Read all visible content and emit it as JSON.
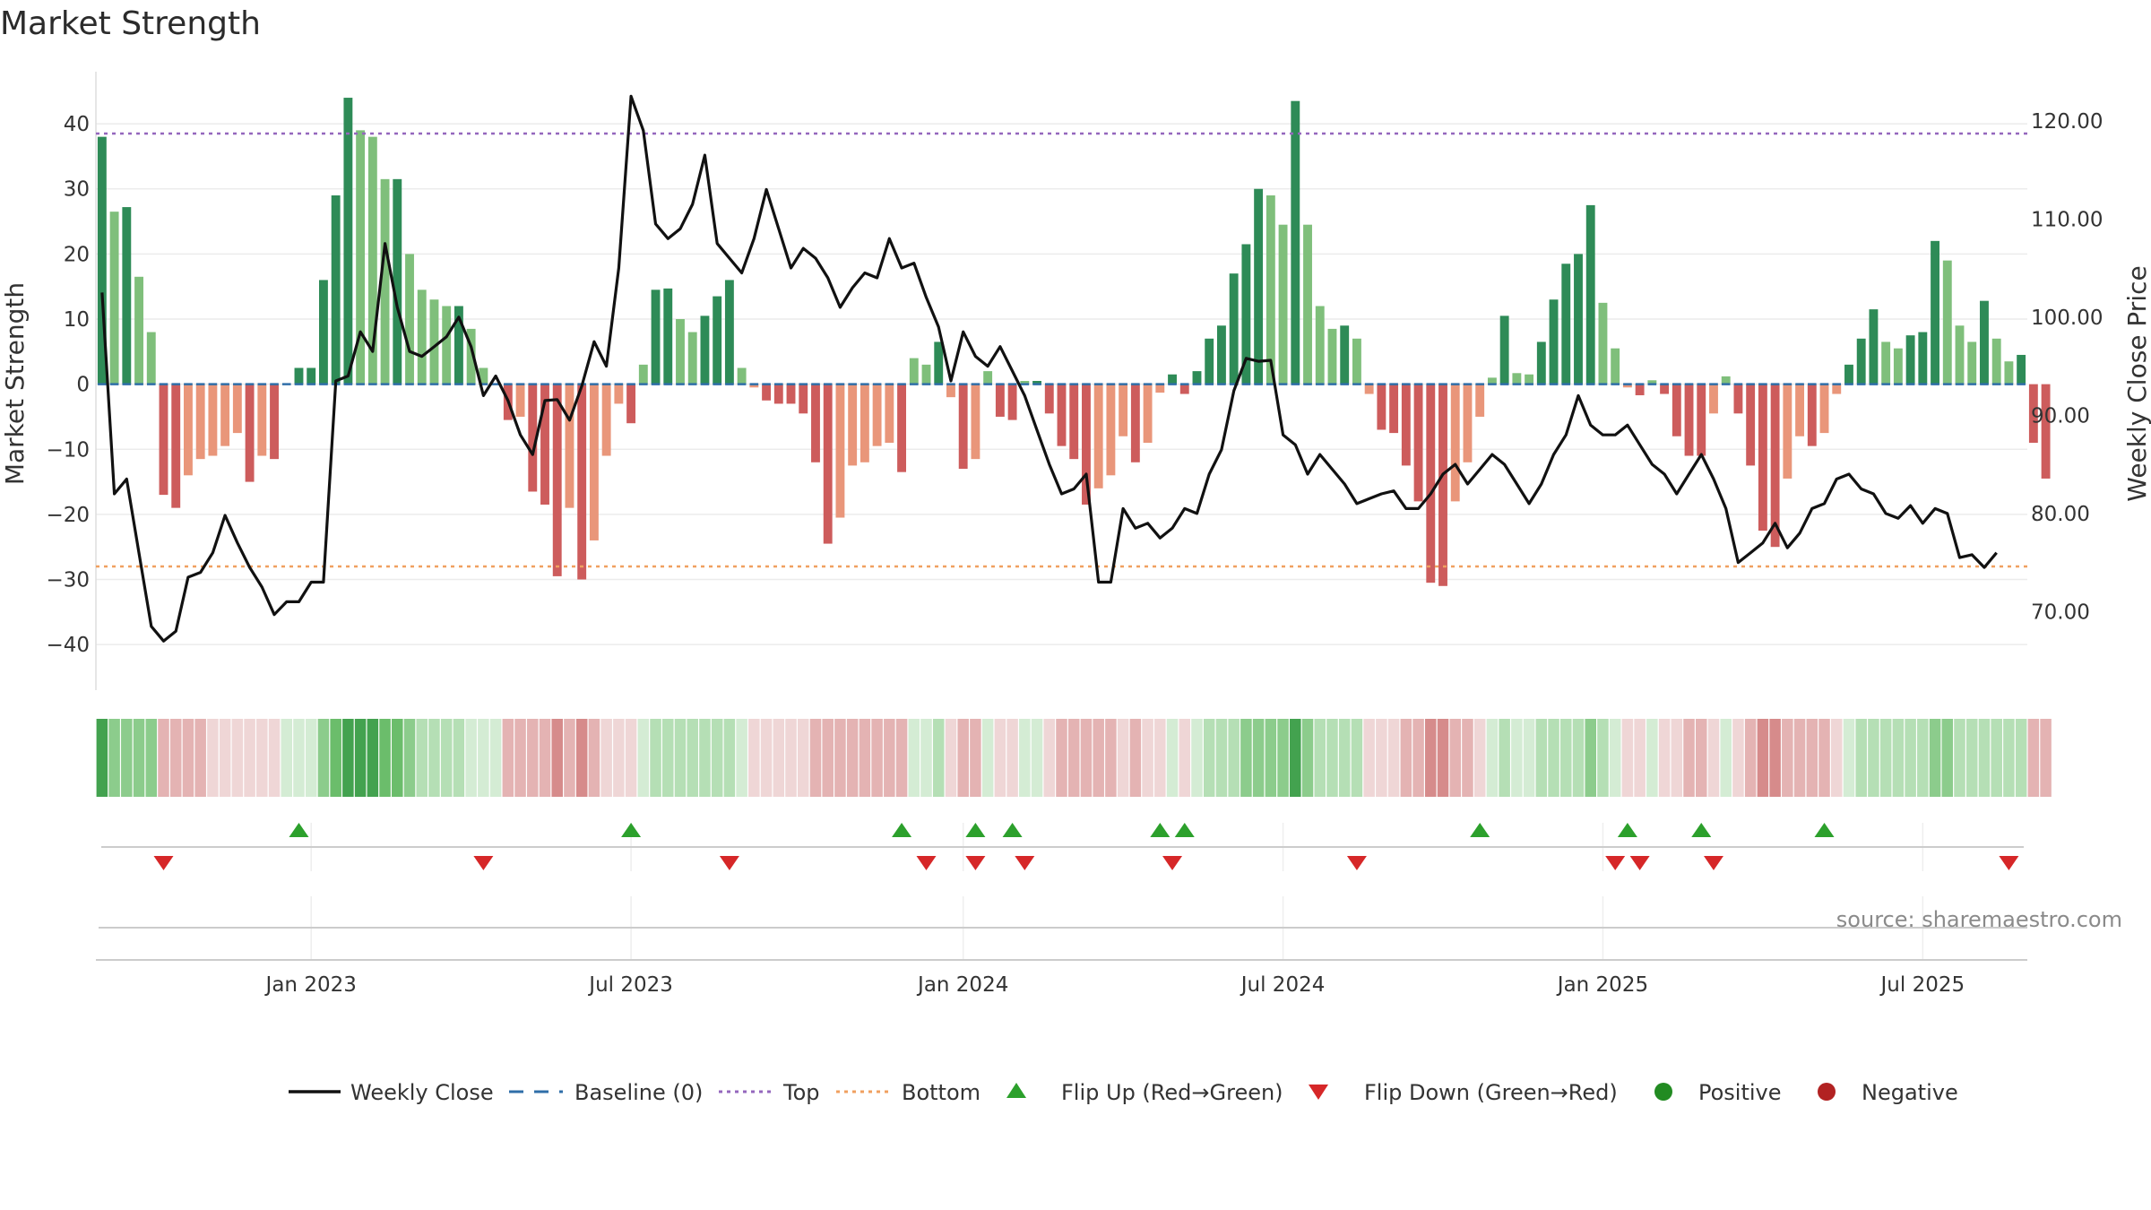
{
  "chart_data": {
    "type": "bar",
    "title": "Market Strength",
    "ylabel_left": "Market Strength",
    "ylabel_right": "Weekly Close Price",
    "ylim_left": [
      -47,
      48
    ],
    "ylim_right": [
      62,
      125
    ],
    "yticks_left": [
      40,
      30,
      20,
      10,
      0,
      -10,
      -20,
      -30,
      -40
    ],
    "ytick_labels_left": [
      "40",
      "30",
      "20",
      "10",
      "0",
      "−10",
      "−20",
      "−30",
      "−40"
    ],
    "yticks_right": [
      120,
      110,
      100,
      90,
      80,
      70
    ],
    "ytick_labels_right": [
      "120.00",
      "110.00",
      "100.00",
      "90.00",
      "80.00",
      "70.00"
    ],
    "top_line": 38.5,
    "bottom_line": -28,
    "xticks": [
      {
        "label": "Jan 2023",
        "week": 17
      },
      {
        "label": "Jul 2023",
        "week": 43
      },
      {
        "label": "Jan 2024",
        "week": 70
      },
      {
        "label": "Jul 2024",
        "week": 96
      },
      {
        "label": "Jan 2025",
        "week": 122
      },
      {
        "label": "Jul 2025",
        "week": 148
      }
    ],
    "weeks": 157,
    "strength": [
      38,
      26.5,
      27.2,
      16.5,
      8,
      -17,
      -19,
      -14,
      -11.5,
      -11,
      -9.5,
      -7.5,
      -15,
      -11,
      -11.5,
      0,
      2.5,
      2.5,
      16,
      29,
      44,
      39,
      38,
      31.5,
      31.5,
      20,
      14.5,
      13,
      12,
      12,
      8.5,
      2.5,
      0,
      -5.5,
      -5,
      -16.5,
      -18.5,
      -29.5,
      -19,
      -30,
      -24,
      -11,
      -3,
      -6,
      3,
      14.5,
      14.7,
      10,
      8,
      10.5,
      13.5,
      16,
      2.5,
      -0.5,
      -2.5,
      -3,
      -3,
      -4.5,
      -12,
      -24.5,
      -20.5,
      -12.5,
      -12,
      -9.5,
      -9,
      -13.5,
      4,
      3,
      6.5,
      -2,
      -13,
      -11.5,
      2,
      -5,
      -5.5,
      0.5,
      0.5,
      -4.5,
      -9.5,
      -11.5,
      -18.5,
      -16,
      -14,
      -8,
      -12,
      -9,
      -1.3,
      1.5,
      -1.5,
      2,
      7,
      9,
      17,
      21.5,
      30,
      29,
      24.5,
      43.5,
      24.5,
      12,
      8.5,
      9,
      7,
      -1.5,
      -7,
      -7.5,
      -12.5,
      -18,
      -30.5,
      -31,
      -18,
      -12,
      -5,
      1,
      10.5,
      1.7,
      1.5,
      6.5,
      13,
      18.5,
      20,
      27.5,
      12.5,
      5.5,
      -0.5,
      -1.7,
      0.6,
      -1.5,
      -8,
      -11,
      -11,
      -4.5,
      1.2,
      -4.5,
      -12.5,
      -22.5,
      -25,
      -14.5,
      -8,
      -9.5,
      -7.5,
      -1.5,
      3,
      7,
      11.5,
      6.5,
      5.5,
      7.5,
      8,
      22,
      19,
      9,
      6.5,
      12.8,
      7,
      3.5,
      4.5,
      -9,
      -14.5
    ],
    "weekly_close": [
      102.5,
      82,
      83.5,
      76,
      68.5,
      67,
      68,
      73.5,
      74,
      76,
      79.8,
      77,
      74.5,
      72.5,
      69.7,
      71,
      71,
      73,
      73,
      93.5,
      94,
      98.5,
      96.5,
      107.5,
      101,
      96.5,
      96,
      97,
      98,
      100,
      97,
      92,
      94,
      91.5,
      88,
      86,
      91.5,
      91.6,
      89.5,
      93,
      97.5,
      95,
      105,
      122.5,
      119,
      109.5,
      108,
      109,
      111.5,
      116.5,
      107.5,
      106,
      104.5,
      108,
      113,
      109,
      105,
      107,
      106,
      104,
      101,
      103,
      104.5,
      104,
      108,
      105,
      105.5,
      102,
      99,
      93.5,
      98.5,
      96,
      95,
      97,
      94.5,
      92,
      88.5,
      85,
      82,
      82.5,
      84,
      73,
      73,
      80.5,
      78.5,
      79,
      77.5,
      78.5,
      80.5,
      80,
      84,
      86.5,
      92.5,
      95.8,
      95.5,
      95.6,
      88,
      87,
      84,
      86,
      84.5,
      83,
      81,
      81.5,
      82,
      82.3,
      80.5,
      80.5,
      82,
      84,
      85,
      83,
      84.5,
      86,
      85,
      83,
      81,
      83,
      86,
      88,
      92,
      89,
      88,
      88,
      89,
      87,
      85,
      84,
      82,
      84,
      86,
      83.5,
      80.5,
      75,
      76,
      77,
      79,
      76.5,
      78,
      80.5,
      81,
      83.5,
      84,
      82.5,
      82,
      80,
      79.5,
      80.8,
      79,
      80.5,
      80,
      75.5,
      75.8,
      74.5,
      76
    ]
  },
  "strip_shades": [
    5,
    3,
    3,
    3,
    3,
    -2,
    -2,
    -2,
    -2,
    -1,
    -1,
    -1,
    -1,
    -1,
    -1,
    1,
    1,
    1,
    3,
    4,
    5,
    5,
    5,
    4,
    4,
    3,
    2,
    2,
    2,
    2,
    1,
    1,
    1,
    -2,
    -2,
    -2,
    -2,
    -3,
    -2,
    -3,
    -2,
    -1,
    -1,
    -1,
    1,
    2,
    2,
    2,
    2,
    2,
    2,
    2,
    1,
    -1,
    -1,
    -1,
    -1,
    -1,
    -2,
    -2,
    -2,
    -2,
    -2,
    -2,
    -2,
    -2,
    1,
    1,
    2,
    -1,
    -2,
    -2,
    1,
    -1,
    -1,
    1,
    1,
    -1,
    -2,
    -2,
    -2,
    -2,
    -2,
    -1,
    -2,
    -1,
    -1,
    1,
    -1,
    1,
    2,
    2,
    2,
    3,
    3,
    3,
    3,
    5,
    3,
    2,
    2,
    2,
    2,
    -1,
    -1,
    -1,
    -2,
    -2,
    -3,
    -3,
    -2,
    -2,
    -1,
    1,
    2,
    1,
    1,
    2,
    2,
    2,
    2,
    3,
    2,
    1,
    -1,
    -1,
    1,
    -1,
    -1,
    -2,
    -2,
    -1,
    1,
    -1,
    -2,
    -3,
    -3,
    -2,
    -2,
    -2,
    -2,
    -1,
    1,
    2,
    2,
    2,
    2,
    2,
    2,
    3,
    3,
    2,
    2,
    2,
    2,
    2,
    2,
    -2,
    -2
  ],
  "flip_up_weeks": [
    16,
    43,
    65,
    71,
    74,
    86,
    88,
    112,
    124,
    130,
    140
  ],
  "flip_down_weeks": [
    5,
    31,
    51,
    67,
    71,
    75,
    87,
    102,
    123,
    125,
    131,
    155
  ],
  "legend": {
    "weekly_close": "Weekly Close",
    "baseline": "Baseline (0)",
    "top": "Top",
    "bottom": "Bottom",
    "flip_up": "Flip Up (Red→Green)",
    "flip_down": "Flip Down (Green→Red)",
    "positive": "Positive",
    "negative": "Negative"
  },
  "source": "source: sharemaestro.com",
  "colors": {
    "strong_green": "#2e8b57",
    "light_green": "#7fbf7b",
    "strong_red": "#cd5c5c",
    "light_red": "#e9967a",
    "price_line": "#111111",
    "baseline": "#2f6ea8",
    "top": "#9467bd",
    "bottom": "#f0a060",
    "flip_up": "#2ca02c",
    "flip_down": "#d62728",
    "positive": "#228b22",
    "negative": "#b22222",
    "grid": "#ececec"
  }
}
